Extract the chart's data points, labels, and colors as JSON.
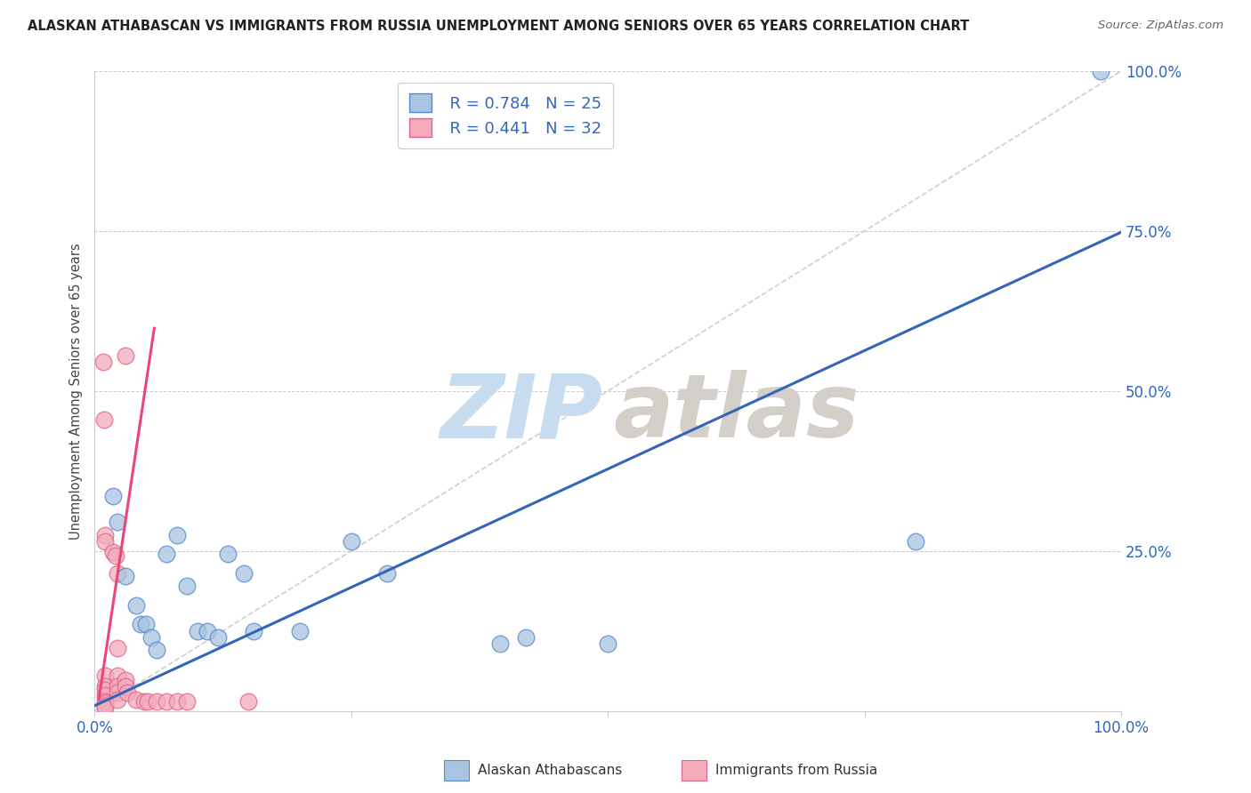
{
  "title": "ALASKAN ATHABASCAN VS IMMIGRANTS FROM RUSSIA UNEMPLOYMENT AMONG SENIORS OVER 65 YEARS CORRELATION CHART",
  "source": "Source: ZipAtlas.com",
  "ylabel": "Unemployment Among Seniors over 65 years",
  "ytick_labels": [
    "",
    "25.0%",
    "50.0%",
    "75.0%",
    "100.0%"
  ],
  "ytick_values": [
    0.0,
    0.25,
    0.5,
    0.75,
    1.0
  ],
  "xlim": [
    0.0,
    1.0
  ],
  "ylim": [
    0.0,
    1.0
  ],
  "legend_blue_r": "R = 0.784",
  "legend_blue_n": "N = 25",
  "legend_pink_r": "R = 0.441",
  "legend_pink_n": "N = 32",
  "legend_label_blue": "Alaskan Athabascans",
  "legend_label_pink": "Immigrants from Russia",
  "blue_fill": "#A8C4E0",
  "pink_fill": "#F4AABB",
  "blue_edge": "#5588CC",
  "pink_edge": "#DD6688",
  "blue_line": "#3366BB",
  "pink_line": "#EE4477",
  "blue_scatter": [
    [
      0.018,
      0.335
    ],
    [
      0.022,
      0.295
    ],
    [
      0.03,
      0.21
    ],
    [
      0.04,
      0.165
    ],
    [
      0.045,
      0.135
    ],
    [
      0.05,
      0.135
    ],
    [
      0.055,
      0.115
    ],
    [
      0.06,
      0.095
    ],
    [
      0.07,
      0.245
    ],
    [
      0.08,
      0.275
    ],
    [
      0.09,
      0.195
    ],
    [
      0.1,
      0.125
    ],
    [
      0.11,
      0.125
    ],
    [
      0.12,
      0.115
    ],
    [
      0.13,
      0.245
    ],
    [
      0.145,
      0.215
    ],
    [
      0.155,
      0.125
    ],
    [
      0.2,
      0.125
    ],
    [
      0.25,
      0.265
    ],
    [
      0.285,
      0.215
    ],
    [
      0.395,
      0.105
    ],
    [
      0.42,
      0.115
    ],
    [
      0.5,
      0.105
    ],
    [
      0.8,
      0.265
    ],
    [
      0.98,
      1.0
    ]
  ],
  "pink_scatter": [
    [
      0.008,
      0.545
    ],
    [
      0.009,
      0.455
    ],
    [
      0.01,
      0.275
    ],
    [
      0.01,
      0.265
    ],
    [
      0.01,
      0.055
    ],
    [
      0.01,
      0.038
    ],
    [
      0.01,
      0.032
    ],
    [
      0.01,
      0.025
    ],
    [
      0.01,
      0.015
    ],
    [
      0.01,
      0.012
    ],
    [
      0.01,
      0.008
    ],
    [
      0.01,
      0.005
    ],
    [
      0.018,
      0.248
    ],
    [
      0.02,
      0.242
    ],
    [
      0.022,
      0.215
    ],
    [
      0.022,
      0.098
    ],
    [
      0.022,
      0.055
    ],
    [
      0.022,
      0.038
    ],
    [
      0.022,
      0.028
    ],
    [
      0.022,
      0.018
    ],
    [
      0.03,
      0.555
    ],
    [
      0.03,
      0.048
    ],
    [
      0.03,
      0.038
    ],
    [
      0.032,
      0.028
    ],
    [
      0.04,
      0.018
    ],
    [
      0.048,
      0.015
    ],
    [
      0.052,
      0.015
    ],
    [
      0.06,
      0.015
    ],
    [
      0.07,
      0.015
    ],
    [
      0.08,
      0.015
    ],
    [
      0.09,
      0.015
    ],
    [
      0.15,
      0.015
    ]
  ],
  "blue_trendline_x": [
    0.0,
    1.0
  ],
  "blue_trendline_y": [
    0.008,
    0.748
  ],
  "pink_trendline_x": [
    0.004,
    0.058
  ],
  "pink_trendline_y": [
    0.018,
    0.598
  ],
  "dashed_line_x": [
    0.0,
    1.0
  ],
  "dashed_line_y": [
    0.0,
    1.0
  ],
  "bg_color": "#FFFFFF",
  "grid_color": "#CCCCCC",
  "watermark_zip_color": "#C8DCEF",
  "watermark_atlas_color": "#D4CFC8"
}
